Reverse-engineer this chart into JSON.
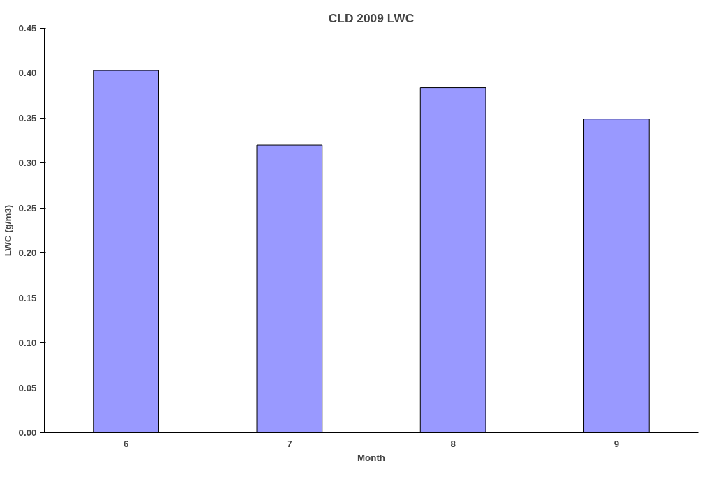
{
  "chart_data": {
    "type": "bar",
    "title": "CLD 2009 LWC",
    "xlabel": "Month",
    "ylabel": "LWC (g/m3)",
    "categories": [
      "6",
      "7",
      "8",
      "9"
    ],
    "values": [
      0.403,
      0.32,
      0.384,
      0.349
    ],
    "color": "#9999ff",
    "ylim": [
      0,
      0.45
    ],
    "yticks": [
      {
        "value": 0,
        "label": "0.00"
      },
      {
        "value": 0.05,
        "label": "0.05"
      },
      {
        "value": 0.1,
        "label": "0.10"
      },
      {
        "value": 0.15,
        "label": "0.15"
      },
      {
        "value": 0.2,
        "label": "0.20"
      },
      {
        "value": 0.25,
        "label": "0.25"
      },
      {
        "value": 0.3,
        "label": "0.30"
      },
      {
        "value": 0.35,
        "label": "0.35"
      },
      {
        "value": 0.4,
        "label": "0.40"
      },
      {
        "value": 0.45,
        "label": "0.45"
      }
    ],
    "grid": false
  }
}
